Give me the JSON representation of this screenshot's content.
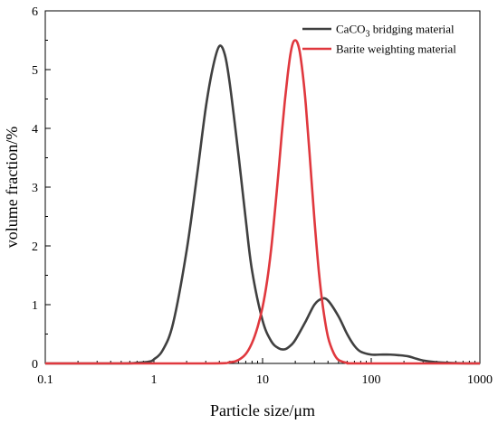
{
  "chart_data": {
    "type": "line",
    "xlabel": "Particle size/μm",
    "ylabel": "volume fraction/%",
    "xscale": "log",
    "xlim": [
      0.1,
      1000
    ],
    "ylim": [
      0,
      6
    ],
    "xticks": [
      0.1,
      1,
      10,
      100,
      1000
    ],
    "xtick_labels": [
      "0.1",
      "1",
      "10",
      "100",
      "1000"
    ],
    "yticks": [
      0,
      1,
      2,
      3,
      4,
      5,
      6
    ],
    "ytick_labels": [
      "0",
      "1",
      "2",
      "3",
      "4",
      "5",
      "6"
    ],
    "grid": false,
    "legend_position": "top-right",
    "series": [
      {
        "name_parts": [
          "CaCO",
          "3",
          " bridging material"
        ],
        "color": "#404040",
        "x": [
          0.1,
          0.5,
          0.7,
          0.9,
          1.0,
          1.2,
          1.5,
          2.0,
          2.5,
          3.0,
          3.5,
          4.0,
          4.5,
          5.0,
          6.0,
          7.0,
          8.0,
          10.0,
          12.0,
          14.0,
          16.0,
          18.0,
          20.0,
          25.0,
          30.0,
          35.0,
          40.0,
          50.0,
          60.0,
          70.0,
          80.0,
          100.0,
          120.0,
          150.0,
          180.0,
          220.0,
          260.0,
          300.0,
          400.0,
          600.0,
          1000.0
        ],
        "y": [
          0,
          0,
          0.01,
          0.03,
          0.07,
          0.22,
          0.68,
          1.92,
          3.22,
          4.35,
          5.05,
          5.4,
          5.25,
          4.75,
          3.55,
          2.45,
          1.58,
          0.73,
          0.38,
          0.26,
          0.24,
          0.3,
          0.4,
          0.72,
          1.0,
          1.1,
          1.07,
          0.8,
          0.5,
          0.3,
          0.2,
          0.15,
          0.15,
          0.15,
          0.14,
          0.12,
          0.08,
          0.05,
          0.02,
          0.005,
          0
        ]
      },
      {
        "name": "Barite weighting material",
        "color": "#e0383e",
        "x": [
          0.1,
          3.0,
          5.0,
          6.0,
          7.0,
          8.0,
          9.0,
          10.0,
          11.0,
          12.0,
          13.0,
          14.0,
          15.0,
          16.0,
          17.0,
          18.0,
          19.0,
          20.0,
          21.0,
          22.0,
          23.0,
          24.0,
          25.0,
          27.0,
          30.0,
          33.0,
          36.0,
          40.0,
          45.0,
          50.0,
          60.0,
          80.0,
          1000.0
        ],
        "y": [
          0,
          0,
          0.02,
          0.06,
          0.16,
          0.35,
          0.62,
          0.96,
          1.4,
          1.95,
          2.6,
          3.25,
          3.9,
          4.45,
          4.9,
          5.25,
          5.45,
          5.5,
          5.45,
          5.3,
          5.05,
          4.75,
          4.4,
          3.6,
          2.45,
          1.55,
          0.95,
          0.45,
          0.18,
          0.06,
          0.01,
          0,
          0
        ]
      }
    ]
  }
}
